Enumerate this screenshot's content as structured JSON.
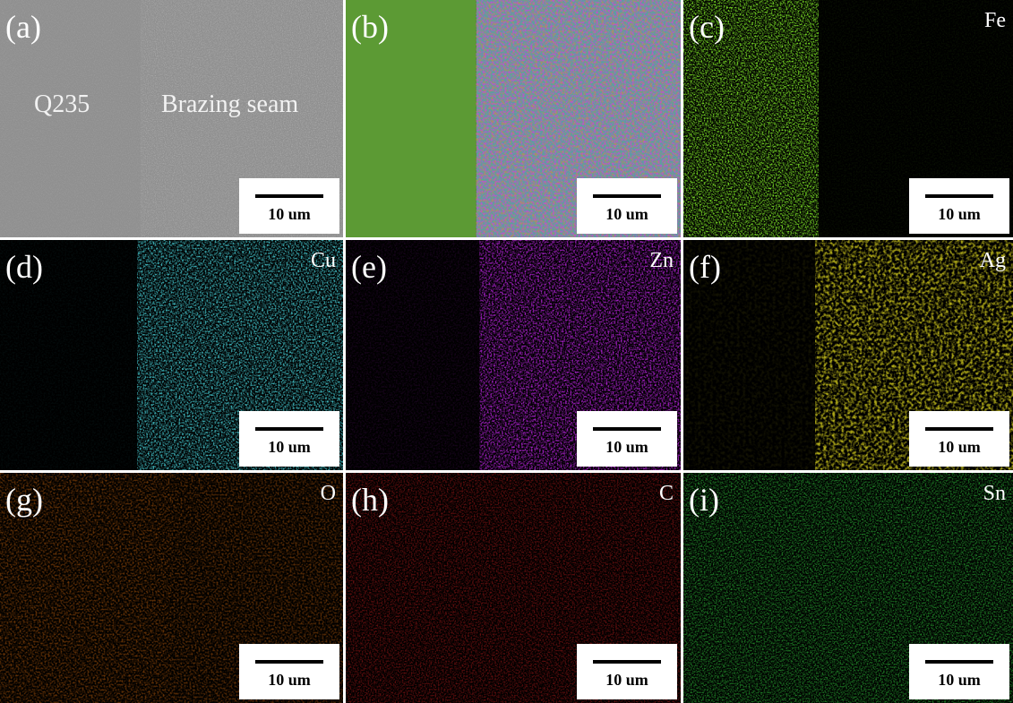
{
  "panels": [
    {
      "label": "(a)",
      "annotations": [
        "Q235",
        "Brazing seam"
      ],
      "scale_bar": "10 um"
    },
    {
      "label": "(b)",
      "scale_bar": "10 um"
    },
    {
      "label": "(c)",
      "element": "Fe",
      "scale_bar": "10 um"
    },
    {
      "label": "(d)",
      "element": "Cu",
      "scale_bar": "10 um"
    },
    {
      "label": "(e)",
      "element": "Zn",
      "scale_bar": "10 um"
    },
    {
      "label": "(f)",
      "element": "Ag",
      "scale_bar": "10 um"
    },
    {
      "label": "(g)",
      "element": "O",
      "scale_bar": "10 um"
    },
    {
      "label": "(h)",
      "element": "C",
      "scale_bar": "10 um"
    },
    {
      "label": "(i)",
      "element": "Sn",
      "scale_bar": "10 um"
    }
  ]
}
